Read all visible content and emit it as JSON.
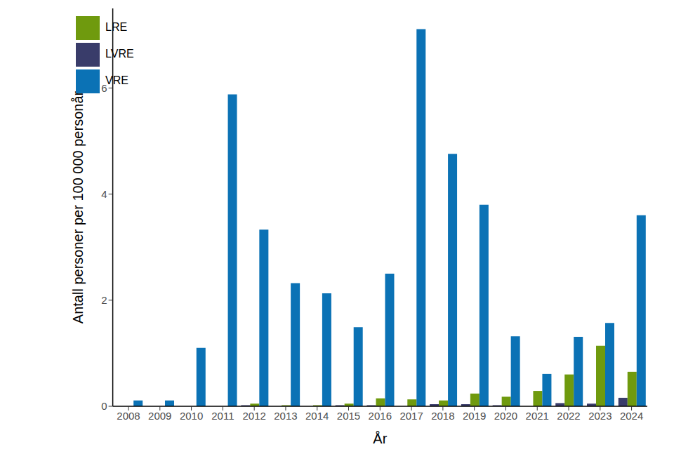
{
  "chart_data": {
    "type": "bar",
    "x_label": "År",
    "y_label": "Antall personer per 100 000 personår",
    "categories": [
      "2008",
      "2009",
      "2010",
      "2011",
      "2012",
      "2013",
      "2014",
      "2015",
      "2016",
      "2017",
      "2018",
      "2019",
      "2020",
      "2021",
      "2022",
      "2023",
      "2024"
    ],
    "series": [
      {
        "name": "LVRE",
        "color": "#393c6a",
        "values": [
          0,
          0,
          0,
          0,
          0.02,
          0,
          0,
          0.02,
          0.02,
          0,
          0.04,
          0.04,
          0.02,
          0,
          0.06,
          0.05,
          0.16
        ]
      },
      {
        "name": "LRE",
        "color": "#6f9a0e",
        "values": [
          0,
          0,
          0,
          0,
          0.05,
          0.02,
          0.02,
          0.05,
          0.15,
          0.13,
          0.11,
          0.24,
          0.18,
          0.29,
          0.6,
          1.14,
          0.65
        ]
      },
      {
        "name": "VRE",
        "color": "#0b72b5",
        "values": [
          0.11,
          0.11,
          1.1,
          5.88,
          3.33,
          2.32,
          2.13,
          1.49,
          2.5,
          7.11,
          4.76,
          3.8,
          1.32,
          0.61,
          1.31,
          1.57,
          3.6
        ]
      }
    ],
    "ylim": [
      0,
      7.5
    ],
    "yticks": [
      0,
      2,
      4,
      6
    ],
    "grid": false,
    "legend": "top-left"
  }
}
